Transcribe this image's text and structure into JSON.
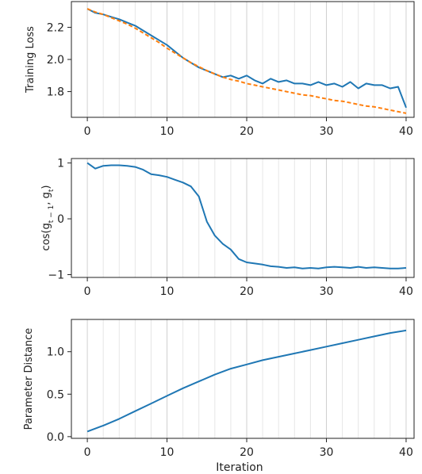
{
  "chart_data": [
    {
      "type": "line",
      "title": "",
      "xlabel": "",
      "ylabel": "Training Loss",
      "xlim": [
        -2,
        41
      ],
      "ylim": [
        1.64,
        2.36
      ],
      "xticks": [
        0,
        10,
        20,
        30,
        40
      ],
      "yticks": [
        1.8,
        2.0,
        2.2
      ],
      "ytick_labels": [
        "1.8",
        "2.0",
        "2.2"
      ],
      "grid": "vertical",
      "colors": {
        "series_a": "#1f77b4",
        "series_b": "#ff7f0e"
      },
      "series": [
        {
          "style": "solid",
          "color": "#1f77b4",
          "x": [
            0,
            1,
            2,
            3,
            4,
            5,
            6,
            7,
            8,
            9,
            10,
            11,
            12,
            13,
            14,
            15,
            16,
            17,
            18,
            19,
            20,
            21,
            22,
            23,
            24,
            25,
            26,
            27,
            28,
            29,
            30,
            31,
            32,
            33,
            34,
            35,
            36,
            37,
            38,
            39,
            40
          ],
          "y": [
            2.315,
            2.29,
            2.28,
            2.265,
            2.25,
            2.23,
            2.21,
            2.18,
            2.15,
            2.12,
            2.09,
            2.05,
            2.01,
            1.98,
            1.95,
            1.93,
            1.91,
            1.89,
            1.9,
            1.88,
            1.9,
            1.87,
            1.85,
            1.88,
            1.86,
            1.87,
            1.85,
            1.85,
            1.84,
            1.86,
            1.84,
            1.85,
            1.83,
            1.86,
            1.82,
            1.85,
            1.84,
            1.84,
            1.82,
            1.83,
            1.7
          ]
        },
        {
          "style": "dashed",
          "color": "#ff7f0e",
          "x": [
            0,
            1,
            2,
            3,
            4,
            5,
            6,
            7,
            8,
            9,
            10,
            11,
            12,
            13,
            14,
            15,
            16,
            17,
            18,
            19,
            20,
            21,
            22,
            23,
            24,
            25,
            26,
            27,
            28,
            29,
            30,
            31,
            32,
            33,
            34,
            35,
            36,
            37,
            38,
            39,
            40
          ],
          "y": [
            2.315,
            2.295,
            2.28,
            2.26,
            2.24,
            2.22,
            2.195,
            2.165,
            2.135,
            2.105,
            2.07,
            2.04,
            2.01,
            1.98,
            1.955,
            1.93,
            1.91,
            1.89,
            1.875,
            1.865,
            1.85,
            1.84,
            1.83,
            1.82,
            1.81,
            1.8,
            1.79,
            1.78,
            1.775,
            1.765,
            1.755,
            1.745,
            1.74,
            1.73,
            1.72,
            1.71,
            1.705,
            1.695,
            1.685,
            1.675,
            1.665
          ]
        }
      ]
    },
    {
      "type": "line",
      "title": "",
      "xlabel": "",
      "ylabel": "cos(g_{t−1}, g_t)",
      "xlim": [
        -2,
        41
      ],
      "ylim": [
        -1.05,
        1.08
      ],
      "xticks": [
        0,
        10,
        20,
        30,
        40
      ],
      "yticks": [
        -1,
        0,
        1
      ],
      "ytick_labels": [
        "−1",
        "0",
        "1"
      ],
      "grid": "vertical",
      "series": [
        {
          "style": "solid",
          "color": "#1f77b4",
          "x": [
            0,
            1,
            2,
            3,
            4,
            5,
            6,
            7,
            8,
            9,
            10,
            11,
            12,
            13,
            14,
            15,
            16,
            17,
            18,
            19,
            20,
            21,
            22,
            23,
            24,
            25,
            26,
            27,
            28,
            29,
            30,
            31,
            32,
            33,
            34,
            35,
            36,
            37,
            38,
            39,
            40
          ],
          "y": [
            1.0,
            0.9,
            0.95,
            0.96,
            0.96,
            0.95,
            0.93,
            0.88,
            0.8,
            0.78,
            0.75,
            0.7,
            0.65,
            0.58,
            0.4,
            -0.05,
            -0.3,
            -0.45,
            -0.55,
            -0.72,
            -0.78,
            -0.8,
            -0.82,
            -0.85,
            -0.86,
            -0.88,
            -0.87,
            -0.89,
            -0.88,
            -0.89,
            -0.87,
            -0.86,
            -0.87,
            -0.88,
            -0.86,
            -0.88,
            -0.87,
            -0.88,
            -0.89,
            -0.89,
            -0.88
          ]
        }
      ]
    },
    {
      "type": "line",
      "title": "",
      "xlabel": "Iteration",
      "ylabel": "Parameter Distance",
      "xlim": [
        -2,
        41
      ],
      "ylim": [
        -0.02,
        1.38
      ],
      "xticks": [
        0,
        10,
        20,
        30,
        40
      ],
      "yticks": [
        0.0,
        0.5,
        1.0
      ],
      "ytick_labels": [
        "0.0",
        "0.5",
        "1.0"
      ],
      "grid": "vertical",
      "series": [
        {
          "style": "solid",
          "color": "#1f77b4",
          "x": [
            0,
            2,
            4,
            6,
            8,
            10,
            12,
            14,
            16,
            18,
            20,
            22,
            24,
            26,
            28,
            30,
            32,
            34,
            36,
            38,
            40
          ],
          "y": [
            0.06,
            0.13,
            0.21,
            0.3,
            0.39,
            0.48,
            0.57,
            0.65,
            0.73,
            0.8,
            0.85,
            0.9,
            0.94,
            0.98,
            1.02,
            1.06,
            1.1,
            1.14,
            1.18,
            1.22,
            1.25
          ]
        }
      ]
    }
  ]
}
